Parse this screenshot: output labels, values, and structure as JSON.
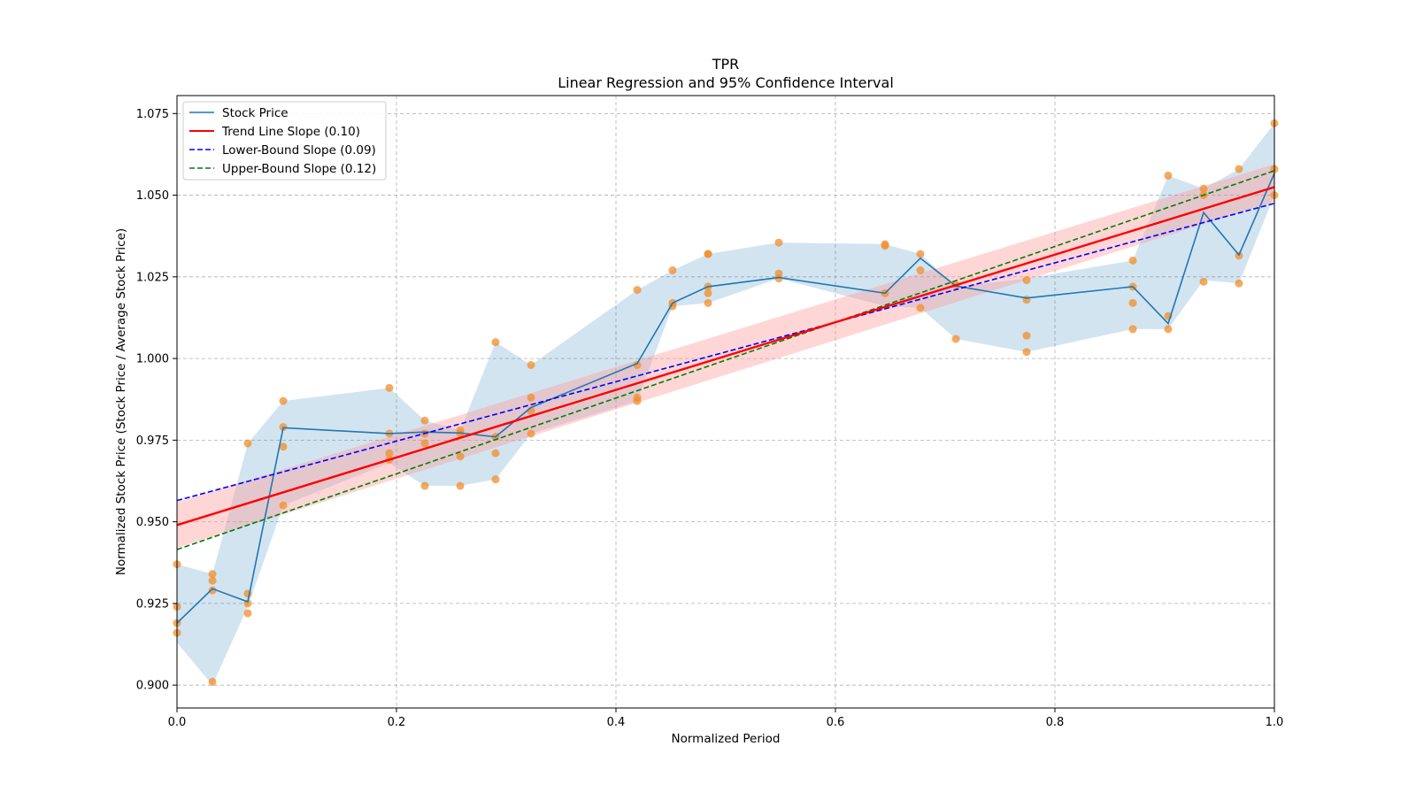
{
  "chart_data": {
    "type": "line",
    "title": "TPR",
    "subtitle": "Linear Regression and 95% Confidence Interval",
    "xlabel": "Normalized Period",
    "ylabel": "Normalized Stock Price (Stock Price / Average Stock Price)",
    "xlim": [
      0.0,
      1.0
    ],
    "ylim": [
      0.893,
      1.0805
    ],
    "xticks": [
      0.0,
      0.2,
      0.4,
      0.6,
      0.8,
      1.0
    ],
    "xtick_labels": [
      "0.0",
      "0.2",
      "0.4",
      "0.6",
      "0.8",
      "1.0"
    ],
    "yticks": [
      0.9,
      0.925,
      0.95,
      0.975,
      1.0,
      1.025,
      1.05,
      1.075
    ],
    "ytick_labels": [
      "0.900",
      "0.925",
      "0.950",
      "0.975",
      "1.000",
      "1.025",
      "1.050",
      "1.075"
    ],
    "grid": true,
    "legend_position": "top-left",
    "colors": {
      "stock": "#1f77b4",
      "band": "#1f77b4",
      "points": "#f28e2b",
      "trend": "#ff0000",
      "trend_band": "#ff9999",
      "lower": "#0000ff",
      "upper": "#007f00"
    },
    "series": [
      {
        "name": "Stock Price",
        "style": "solid",
        "x": [
          0.0,
          0.0323,
          0.0645,
          0.0968,
          0.1935,
          0.2258,
          0.2581,
          0.2903,
          0.3226,
          0.4194,
          0.4516,
          0.4839,
          0.5484,
          0.6452,
          0.6774,
          0.7097,
          0.7742,
          0.871,
          0.9032,
          0.9355,
          0.9677,
          1.0
        ],
        "y": [
          0.919,
          0.9295,
          0.9255,
          0.9788,
          0.977,
          0.9775,
          0.9772,
          0.976,
          0.985,
          0.9985,
          1.017,
          1.022,
          1.0248,
          1.02,
          1.0307,
          1.0222,
          1.0185,
          1.022,
          1.0107,
          1.0447,
          1.0317,
          1.0567
        ],
        "band_lower": [
          0.913,
          0.9,
          0.924,
          0.955,
          0.968,
          0.961,
          0.961,
          0.963,
          0.977,
          0.987,
          1.016,
          1.017,
          1.0245,
          1.016,
          1.0155,
          1.006,
          1.002,
          1.009,
          1.009,
          1.024,
          1.023,
          1.05
        ],
        "band_upper": [
          0.937,
          0.934,
          0.974,
          0.987,
          0.991,
          0.981,
          0.978,
          1.005,
          0.998,
          1.021,
          1.027,
          1.032,
          1.0355,
          1.035,
          1.032,
          1.022,
          1.0245,
          1.03,
          1.056,
          1.052,
          1.058,
          1.072
        ]
      },
      {
        "name": "Trend Line Slope (0.10)",
        "style": "solid",
        "x": [
          0.0,
          1.0
        ],
        "y": [
          0.949,
          1.0525
        ],
        "band_lower": [
          0.942,
          1.048
        ],
        "band_upper": [
          0.956,
          1.0595
        ]
      },
      {
        "name": "Lower-Bound Slope (0.09)",
        "style": "dashed",
        "x": [
          0.0,
          1.0
        ],
        "y": [
          0.9565,
          1.0475
        ]
      },
      {
        "name": "Upper-Bound Slope (0.12)",
        "style": "dashed",
        "x": [
          0.0,
          1.0
        ],
        "y": [
          0.9415,
          1.0575
        ]
      }
    ],
    "scatter": {
      "x": [
        0.0,
        0.0,
        0.0,
        0.0,
        0.0323,
        0.0323,
        0.0323,
        0.0323,
        0.0645,
        0.0645,
        0.0645,
        0.0645,
        0.0968,
        0.0968,
        0.0968,
        0.0968,
        0.1935,
        0.1935,
        0.1935,
        0.1935,
        0.2258,
        0.2258,
        0.2258,
        0.2258,
        0.2581,
        0.2581,
        0.2581,
        0.2581,
        0.2903,
        0.2903,
        0.2903,
        0.2903,
        0.3226,
        0.3226,
        0.3226,
        0.3226,
        0.4194,
        0.4194,
        0.4194,
        0.4194,
        0.4516,
        0.4516,
        0.4516,
        0.4839,
        0.4839,
        0.4839,
        0.4839,
        0.4839,
        0.5484,
        0.5484,
        0.5484,
        0.6452,
        0.6452,
        0.6452,
        0.6774,
        0.6774,
        0.6774,
        0.7097,
        0.7097,
        0.7742,
        0.7742,
        0.7742,
        0.7742,
        0.871,
        0.871,
        0.871,
        0.871,
        0.9032,
        0.9032,
        0.9032,
        0.9355,
        0.9355,
        0.9355,
        0.9677,
        0.9677,
        0.9677,
        1.0,
        1.0,
        1.0
      ],
      "y": [
        0.937,
        0.924,
        0.919,
        0.916,
        0.934,
        0.932,
        0.929,
        0.901,
        0.974,
        0.928,
        0.925,
        0.922,
        0.987,
        0.979,
        0.973,
        0.955,
        0.991,
        0.977,
        0.971,
        0.969,
        0.981,
        0.977,
        0.974,
        0.961,
        0.978,
        0.977,
        0.97,
        0.961,
        1.005,
        0.976,
        0.971,
        0.963,
        0.998,
        0.988,
        0.984,
        0.977,
        1.021,
        0.998,
        0.988,
        0.987,
        1.027,
        1.017,
        1.016,
        1.032,
        1.032,
        1.022,
        1.02,
        1.017,
        1.0355,
        1.026,
        1.0245,
        1.035,
        1.0345,
        1.02,
        1.032,
        1.027,
        1.0155,
        1.0225,
        1.006,
        1.024,
        1.018,
        1.007,
        1.002,
        1.03,
        1.022,
        1.017,
        1.009,
        1.056,
        1.013,
        1.009,
        1.052,
        1.05,
        1.0235,
        1.058,
        1.0315,
        1.023,
        1.072,
        1.058,
        1.05
      ]
    }
  }
}
